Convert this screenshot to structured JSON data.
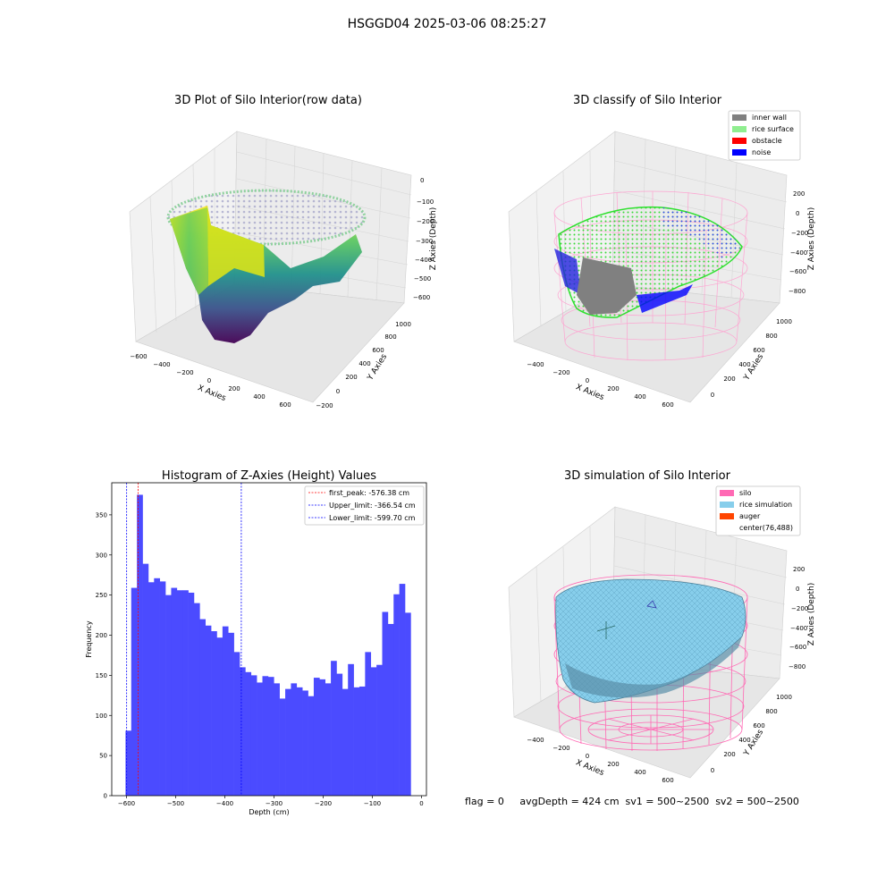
{
  "suptitle": "HSGGD04 2025-03-06 08:25:27",
  "colors": {
    "inner_wall": "#808080",
    "rice_surface": "#90ee90",
    "obstacle": "#ff0000",
    "noise": "#0000ff",
    "silo": "#ff69b4",
    "rice_simulation": "#87ceeb",
    "auger": "#ff4500",
    "hist_bar": "#4b4bff"
  },
  "panel_3d_raw": {
    "title": "3D Plot of Silo Interior(row data)",
    "xlabel": "X Axies",
    "ylabel": "Y Axies",
    "zlabel": "Z Axies (Depth)",
    "xticks": [
      "−600",
      "−400",
      "−200",
      "0",
      "200",
      "400",
      "600"
    ],
    "yticks": [
      "−200",
      "0",
      "200",
      "400",
      "600",
      "800",
      "1000"
    ],
    "zticks": [
      "0",
      "−100",
      "−200",
      "−300",
      "−400",
      "−500",
      "−600"
    ],
    "colormap": "viridis"
  },
  "panel_3d_classify": {
    "title": "3D classify of Silo Interior",
    "xlabel": "X Axies",
    "ylabel": "Y Axies",
    "zlabel": "Z Axies (Depth)",
    "xticks": [
      "−400",
      "−200",
      "0",
      "200",
      "400",
      "600"
    ],
    "yticks": [
      "0",
      "200",
      "400",
      "600",
      "800",
      "1000"
    ],
    "zticks": [
      "200",
      "0",
      "−200",
      "−400",
      "−600",
      "−800"
    ],
    "legend": [
      {
        "label": "inner wall",
        "color": "#808080"
      },
      {
        "label": "rice surface",
        "color": "#90ee90"
      },
      {
        "label": "obstacle",
        "color": "#ff0000"
      },
      {
        "label": "noise",
        "color": "#0000ff"
      }
    ]
  },
  "panel_3d_sim": {
    "title": "3D simulation of Silo Interior",
    "xlabel": "X Axies",
    "ylabel": "Y Axies",
    "zlabel": "Z Axies (Depth)",
    "xticks": [
      "−400",
      "−200",
      "0",
      "200",
      "400",
      "600"
    ],
    "yticks": [
      "0",
      "200",
      "400",
      "600",
      "800",
      "1000"
    ],
    "zticks": [
      "200",
      "0",
      "−200",
      "−400",
      "−600",
      "−800"
    ],
    "legend": [
      {
        "label": "silo",
        "color": "#ff69b4"
      },
      {
        "label": "rice simulation",
        "color": "#87ceeb"
      },
      {
        "label": "auger",
        "color": "#ff4500"
      },
      {
        "label": "center(76,488)",
        "color": ""
      }
    ]
  },
  "status_line": "flag = 0     avgDepth = 424 cm  sv1 = 500~2500  sv2 = 500~2500",
  "chart_data": {
    "type": "bar",
    "title": "Histogram of Z-Axies (Height) Values",
    "xlabel": "Depth (cm)",
    "ylabel": "Frequency",
    "xlim": [
      -630,
      10
    ],
    "ylim": [
      0,
      390
    ],
    "xticks": [
      -600,
      -500,
      -400,
      -300,
      -200,
      -100,
      0
    ],
    "xtick_labels": [
      "−600",
      "−500",
      "−400",
      "−300",
      "−200",
      "−100",
      "0"
    ],
    "yticks": [
      0,
      50,
      100,
      150,
      200,
      250,
      300,
      350
    ],
    "bin_start": -602,
    "bin_width": 11.6,
    "values": [
      81,
      259,
      375,
      289,
      266,
      271,
      267,
      250,
      259,
      256,
      256,
      253,
      240,
      220,
      212,
      205,
      197,
      211,
      203,
      179,
      160,
      154,
      150,
      141,
      149,
      148,
      140,
      121,
      133,
      140,
      135,
      131,
      124,
      147,
      145,
      140,
      168,
      152,
      133,
      164,
      135,
      136,
      179,
      160,
      163,
      229,
      214,
      251,
      264,
      228
    ],
    "legend_position": "upper right",
    "vlines": [
      {
        "label": "first_peak: -576.38 cm",
        "x": -576.38,
        "color": "#ff0000"
      },
      {
        "label": "Upper_limit: -366.54 cm",
        "x": -366.54,
        "color": "#0000ff"
      },
      {
        "label": "Lower_limit: -599.70 cm",
        "x": -599.7,
        "color": "#0000ff"
      }
    ]
  }
}
